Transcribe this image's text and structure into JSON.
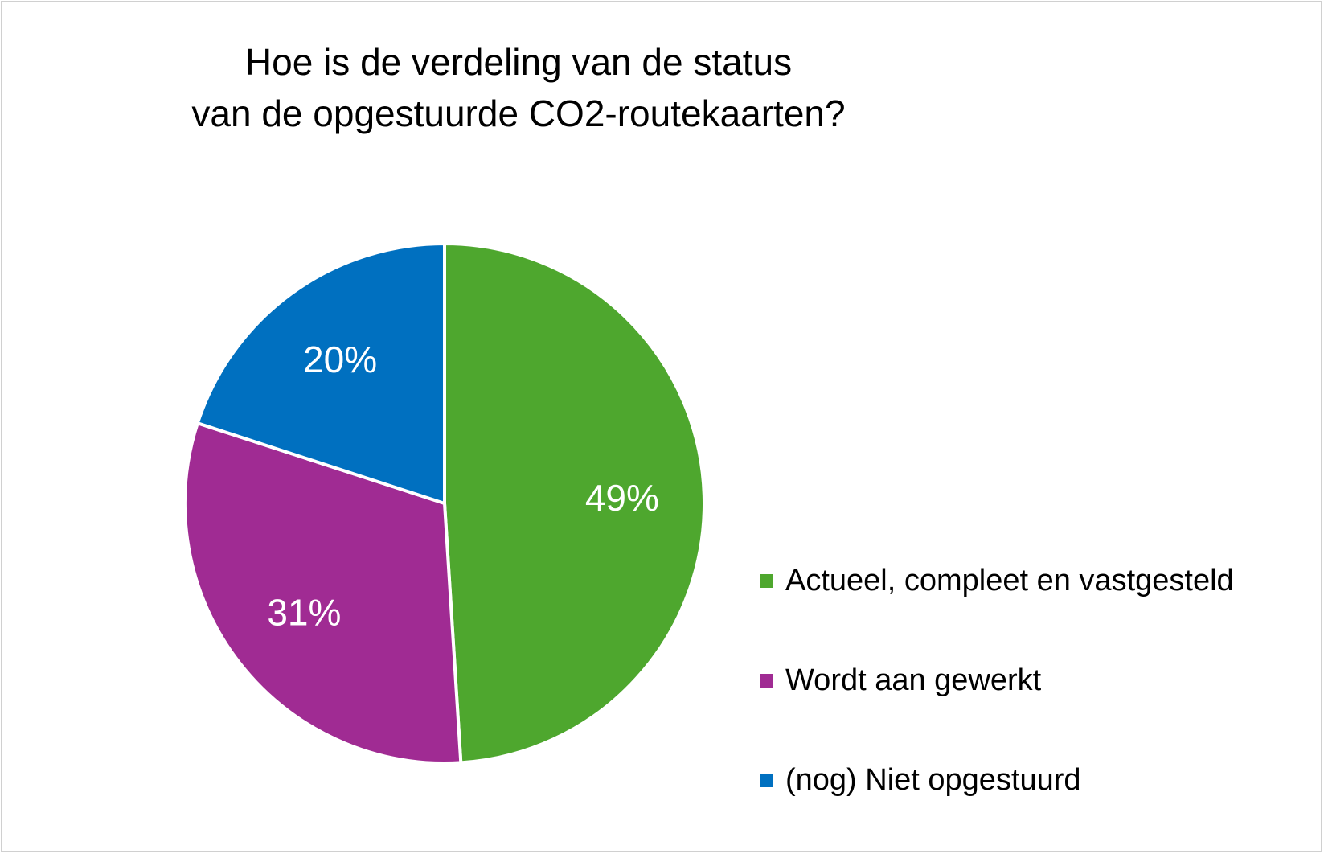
{
  "chart_data": {
    "type": "pie",
    "title_lines": [
      "Hoe is de verdeling van de status",
      "van de opgestuurde CO2-routekaarten?"
    ],
    "slices": [
      {
        "label": "Actueel, compleet en vastgesteld",
        "value": 49,
        "data_label": "49%",
        "color": "#4ea72e"
      },
      {
        "label": "Wordt aan gewerkt",
        "value": 31,
        "data_label": "31%",
        "color": "#a02b93"
      },
      {
        "label": "(nog) Niet opgestuurd",
        "value": 20,
        "data_label": "20%",
        "color": "#0070c0"
      }
    ],
    "start_angle": "12 o'clock",
    "direction": "clockwise",
    "legend_position": "bottom-right",
    "data_label_color": "#ffffff"
  }
}
